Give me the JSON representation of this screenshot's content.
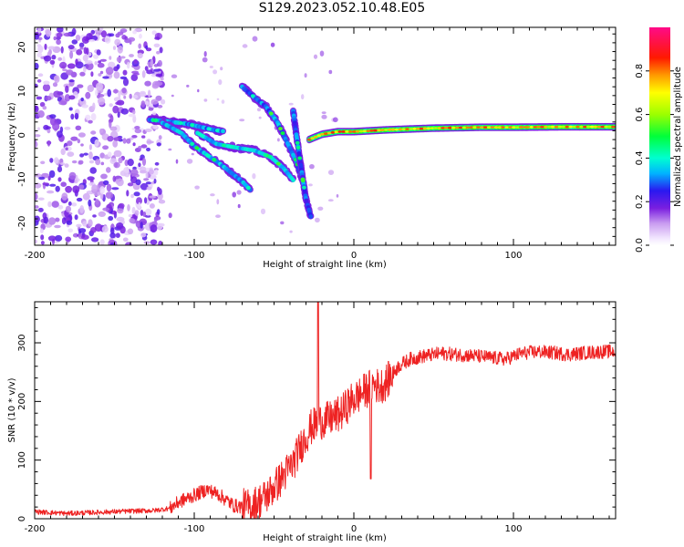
{
  "figure": {
    "title": "S129.2023.052.10.48.E05"
  },
  "chart_data": [
    {
      "type": "heatmap",
      "name": "spectrogram",
      "xlabel": "Height of straight line (km)",
      "ylabel": "Frequency (Hz)",
      "xlim": [
        -200,
        164
      ],
      "ylim": [
        -25,
        24.5
      ],
      "x_ticks": [
        -200,
        -100,
        0,
        100
      ],
      "y_ticks": [
        20,
        10,
        0,
        -10,
        -20
      ],
      "colorbar": {
        "label": "Normalized spectral amplitude",
        "range": [
          0,
          1
        ],
        "ticks": [
          0.0,
          0.2,
          0.4,
          0.6,
          0.8
        ],
        "tick_labels": [
          "0.0",
          "0.2",
          "0.4",
          "0.6",
          "0.8"
        ],
        "colormap": "white-violet-blue-cyan-green-yellow-red-magenta"
      },
      "background_noise": {
        "x_range": [
          -200,
          -120
        ],
        "freq_range": [
          -25,
          24.5
        ],
        "amplitude": 0.1
      },
      "features": [
        {
          "label": "doppler-track-upper",
          "points": [
            [
              -128,
              3.5
            ],
            [
              -118,
              3.2
            ],
            [
              -105,
              2.6
            ],
            [
              -95,
              1.8
            ],
            [
              -88,
              1.2
            ],
            [
              -82,
              0.9
            ]
          ],
          "amplitude": 0.25
        },
        {
          "label": "doppler-track-lower-1",
          "points": [
            [
              -120,
              2.8
            ],
            [
              -108,
              0.5
            ],
            [
              -100,
              -2.5
            ],
            [
              -92,
              -4.5
            ],
            [
              -85,
              -6.2
            ],
            [
              -78,
              -8.2
            ],
            [
              -70,
              -10.5
            ],
            [
              -65,
              -12.4
            ]
          ],
          "amplitude": 0.28
        },
        {
          "label": "doppler-track-lower-2",
          "points": [
            [
              -98,
              0.5
            ],
            [
              -86,
              -2
            ],
            [
              -74,
              -2.8
            ],
            [
              -62,
              -3.5
            ],
            [
              -52,
              -5
            ],
            [
              -44,
              -7.5
            ],
            [
              -38,
              -10.2
            ]
          ],
          "amplitude": 0.3
        },
        {
          "label": "doppler-track-rising",
          "points": [
            [
              -70,
              11
            ],
            [
              -62,
              8.5
            ],
            [
              -55,
              6.5
            ],
            [
              -48,
              3
            ],
            [
              -42,
              -1.5
            ],
            [
              -36,
              -6
            ],
            [
              -32,
              -10.5
            ]
          ],
          "amplitude": 0.25
        },
        {
          "label": "doppler-track-steep",
          "points": [
            [
              -38,
              5.5
            ],
            [
              -36,
              0
            ],
            [
              -34,
              -5
            ],
            [
              -32,
              -10
            ],
            [
              -30,
              -14.5
            ],
            [
              -27,
              -18.5
            ]
          ],
          "amplitude": 0.22
        },
        {
          "label": "carrier-line",
          "points": [
            [
              -28,
              -1
            ],
            [
              -20,
              0.2
            ],
            [
              -10,
              0.8
            ],
            [
              0,
              0.8
            ],
            [
              20,
              1.2
            ],
            [
              50,
              1.6
            ],
            [
              80,
              1.8
            ],
            [
              100,
              1.8
            ],
            [
              130,
              1.9
            ],
            [
              164,
              1.9
            ]
          ],
          "amplitude": 0.85
        }
      ]
    },
    {
      "type": "line",
      "name": "snr",
      "xlabel": "Height of straight line (km)",
      "ylabel": "SNR (10 * v/v)",
      "xlim": [
        -200,
        164
      ],
      "ylim": [
        0,
        370
      ],
      "x_ticks": [
        -200,
        -100,
        0,
        100
      ],
      "y_ticks": [
        0,
        100,
        200,
        300
      ],
      "series": [
        {
          "color": "#ee2222",
          "points": [
            [
              -200,
              12
            ],
            [
              -180,
              9
            ],
            [
              -160,
              11
            ],
            [
              -140,
              13
            ],
            [
              -125,
              14
            ],
            [
              -115,
              18
            ],
            [
              -110,
              28
            ],
            [
              -100,
              40
            ],
            [
              -92,
              50
            ],
            [
              -85,
              42
            ],
            [
              -75,
              22
            ],
            [
              -65,
              20
            ],
            [
              -55,
              38
            ],
            [
              -45,
              70
            ],
            [
              -38,
              95
            ],
            [
              -32,
              130
            ],
            [
              -27,
              155
            ],
            [
              -22,
              165
            ],
            [
              -15,
              170
            ],
            [
              -8,
              180
            ],
            [
              -2,
              200
            ],
            [
              3,
              210
            ],
            [
              8,
              220
            ],
            [
              12,
              230
            ],
            [
              16,
              225
            ],
            [
              20,
              232
            ],
            [
              28,
              260
            ],
            [
              35,
              272
            ],
            [
              45,
              278
            ],
            [
              55,
              282
            ],
            [
              65,
              280
            ],
            [
              75,
              278
            ],
            [
              85,
              275
            ],
            [
              95,
              272
            ],
            [
              105,
              282
            ],
            [
              115,
              285
            ],
            [
              125,
              283
            ],
            [
              135,
              280
            ],
            [
              145,
              283
            ],
            [
              155,
              285
            ],
            [
              164,
              285
            ]
          ],
          "spikes": [
            {
              "x": -22.5,
              "y": 370
            },
            {
              "x": 10.5,
              "y": 68
            }
          ],
          "noise_amplitude": 12
        }
      ]
    }
  ]
}
